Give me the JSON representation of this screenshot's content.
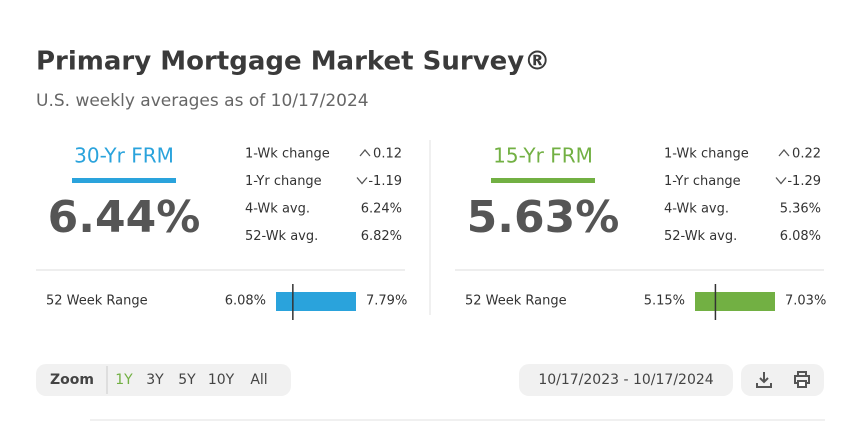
{
  "header": {
    "title": "Primary Mortgage Market Survey®",
    "subtitle": "U.S. weekly averages as of 10/17/2024"
  },
  "panels": [
    {
      "name": "30-Yr FRM",
      "color": "#2aa3dc",
      "rate": {
        "value": 6.44,
        "label": "6.44%"
      },
      "stats": [
        {
          "label": "1-Wk change",
          "value": "0.12",
          "direction": "up"
        },
        {
          "label": "1-Yr change",
          "value": "-1.19",
          "direction": "down"
        },
        {
          "label": "4-Wk avg.",
          "value": "6.24%"
        },
        {
          "label": "52-Wk avg.",
          "value": "6.82%"
        }
      ],
      "range": {
        "label": "52 Week Range",
        "low": {
          "value": 6.08,
          "label": "6.08%"
        },
        "high": {
          "value": 7.79,
          "label": "7.79%"
        }
      }
    },
    {
      "name": "15-Yr FRM",
      "color": "#72b043",
      "rate": {
        "value": 5.63,
        "label": "5.63%"
      },
      "stats": [
        {
          "label": "1-Wk change",
          "value": "0.22",
          "direction": "up"
        },
        {
          "label": "1-Yr change",
          "value": "-1.29",
          "direction": "down"
        },
        {
          "label": "4-Wk avg.",
          "value": "5.36%"
        },
        {
          "label": "52-Wk avg.",
          "value": "6.08%"
        }
      ],
      "range": {
        "label": "52 Week Range",
        "low": {
          "value": 5.15,
          "label": "5.15%"
        },
        "high": {
          "value": 7.03,
          "label": "7.03%"
        }
      }
    }
  ],
  "toolbar": {
    "zoom_label": "Zoom",
    "zoom_options": [
      "1Y",
      "3Y",
      "5Y",
      "10Y",
      "All"
    ],
    "selected_index": 0,
    "date_range": "10/17/2023 - 10/17/2024"
  }
}
